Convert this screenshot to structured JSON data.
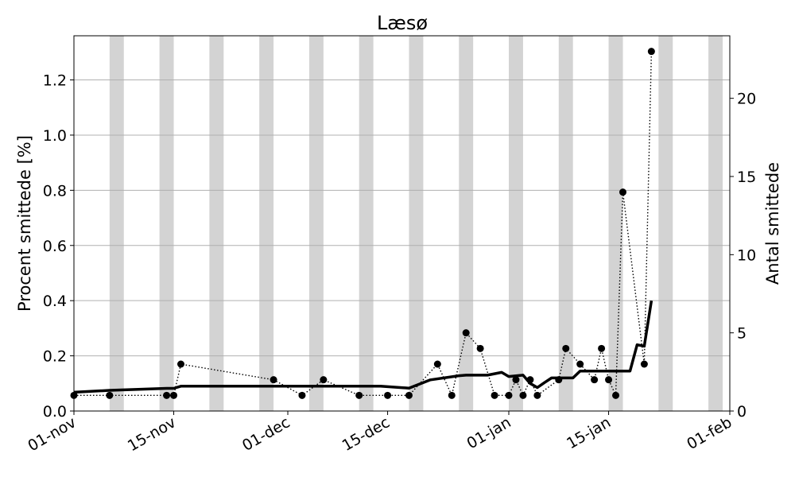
{
  "chart_data": {
    "type": "line",
    "title": "Læsø",
    "ylabel_left": "Procent smittede [%]",
    "ylabel_right": "Antal smittede",
    "x_range": [
      "2020-11-01",
      "2021-02-01"
    ],
    "y_left_range": [
      0,
      1.36
    ],
    "y_right_range": [
      0,
      24
    ],
    "x_ticks": [
      {
        "date": "2020-11-01",
        "label": "01-nov"
      },
      {
        "date": "2020-11-15",
        "label": "15-nov"
      },
      {
        "date": "2020-12-01",
        "label": "01-dec"
      },
      {
        "date": "2020-12-15",
        "label": "15-dec"
      },
      {
        "date": "2021-01-01",
        "label": "01-jan"
      },
      {
        "date": "2021-01-15",
        "label": "15-jan"
      },
      {
        "date": "2021-02-01",
        "label": "01-feb"
      }
    ],
    "y_left_ticks": [
      "0.0",
      "0.2",
      "0.4",
      "0.6",
      "0.8",
      "1.0",
      "1.2"
    ],
    "y_right_ticks": [
      "0",
      "5",
      "10",
      "15",
      "20"
    ],
    "grid": "horizontal",
    "weekend_bands": [
      "2020-11-06",
      "2020-11-13",
      "2020-11-20",
      "2020-11-27",
      "2020-12-04",
      "2020-12-11",
      "2020-12-18",
      "2020-12-25",
      "2021-01-01",
      "2021-01-08",
      "2021-01-15",
      "2021-01-22",
      "2021-01-29"
    ],
    "series": [
      {
        "style": "solid-thick",
        "axis": "left",
        "points": [
          [
            "2020-11-01",
            0.068
          ],
          [
            "2020-11-06",
            0.075
          ],
          [
            "2020-11-14",
            0.082
          ],
          [
            "2020-11-15",
            0.082
          ],
          [
            "2020-11-16",
            0.09
          ],
          [
            "2020-11-30",
            0.09
          ],
          [
            "2020-12-14",
            0.09
          ],
          [
            "2020-12-18",
            0.083
          ],
          [
            "2020-12-21",
            0.113
          ],
          [
            "2020-12-25",
            0.128
          ],
          [
            "2020-12-26",
            0.13
          ],
          [
            "2020-12-29",
            0.13
          ],
          [
            "2020-12-31",
            0.14
          ],
          [
            "2021-01-01",
            0.125
          ],
          [
            "2021-01-03",
            0.13
          ],
          [
            "2021-01-04",
            0.1
          ],
          [
            "2021-01-05",
            0.085
          ],
          [
            "2021-01-06",
            0.103
          ],
          [
            "2021-01-07",
            0.12
          ],
          [
            "2021-01-10",
            0.12
          ],
          [
            "2021-01-11",
            0.145
          ],
          [
            "2021-01-17",
            0.145
          ],
          [
            "2021-01-18",
            0.145
          ],
          [
            "2021-01-19",
            0.24
          ],
          [
            "2021-01-20",
            0.235
          ],
          [
            "2021-01-21",
            0.4
          ]
        ]
      },
      {
        "style": "dotted-markers",
        "axis": "right",
        "points": [
          [
            "2020-11-01",
            1
          ],
          [
            "2020-11-06",
            1
          ],
          [
            "2020-11-14",
            1
          ],
          [
            "2020-11-15",
            1
          ],
          [
            "2020-11-16",
            3
          ],
          [
            "2020-11-29",
            2
          ],
          [
            "2020-12-03",
            1
          ],
          [
            "2020-12-06",
            2
          ],
          [
            "2020-12-11",
            1
          ],
          [
            "2020-12-15",
            1
          ],
          [
            "2020-12-18",
            1
          ],
          [
            "2020-12-22",
            3
          ],
          [
            "2020-12-24",
            1
          ],
          [
            "2020-12-26",
            5
          ],
          [
            "2020-12-28",
            4
          ],
          [
            "2020-12-30",
            1
          ],
          [
            "2021-01-01",
            1
          ],
          [
            "2021-01-02",
            2
          ],
          [
            "2021-01-03",
            1
          ],
          [
            "2021-01-04",
            2
          ],
          [
            "2021-01-05",
            1
          ],
          [
            "2021-01-08",
            2
          ],
          [
            "2021-01-09",
            4
          ],
          [
            "2021-01-11",
            3
          ],
          [
            "2021-01-13",
            2
          ],
          [
            "2021-01-14",
            4
          ],
          [
            "2021-01-15",
            2
          ],
          [
            "2021-01-16",
            1
          ],
          [
            "2021-01-17",
            14
          ],
          [
            "2021-01-20",
            3
          ],
          [
            "2021-01-21",
            23
          ]
        ]
      }
    ]
  }
}
